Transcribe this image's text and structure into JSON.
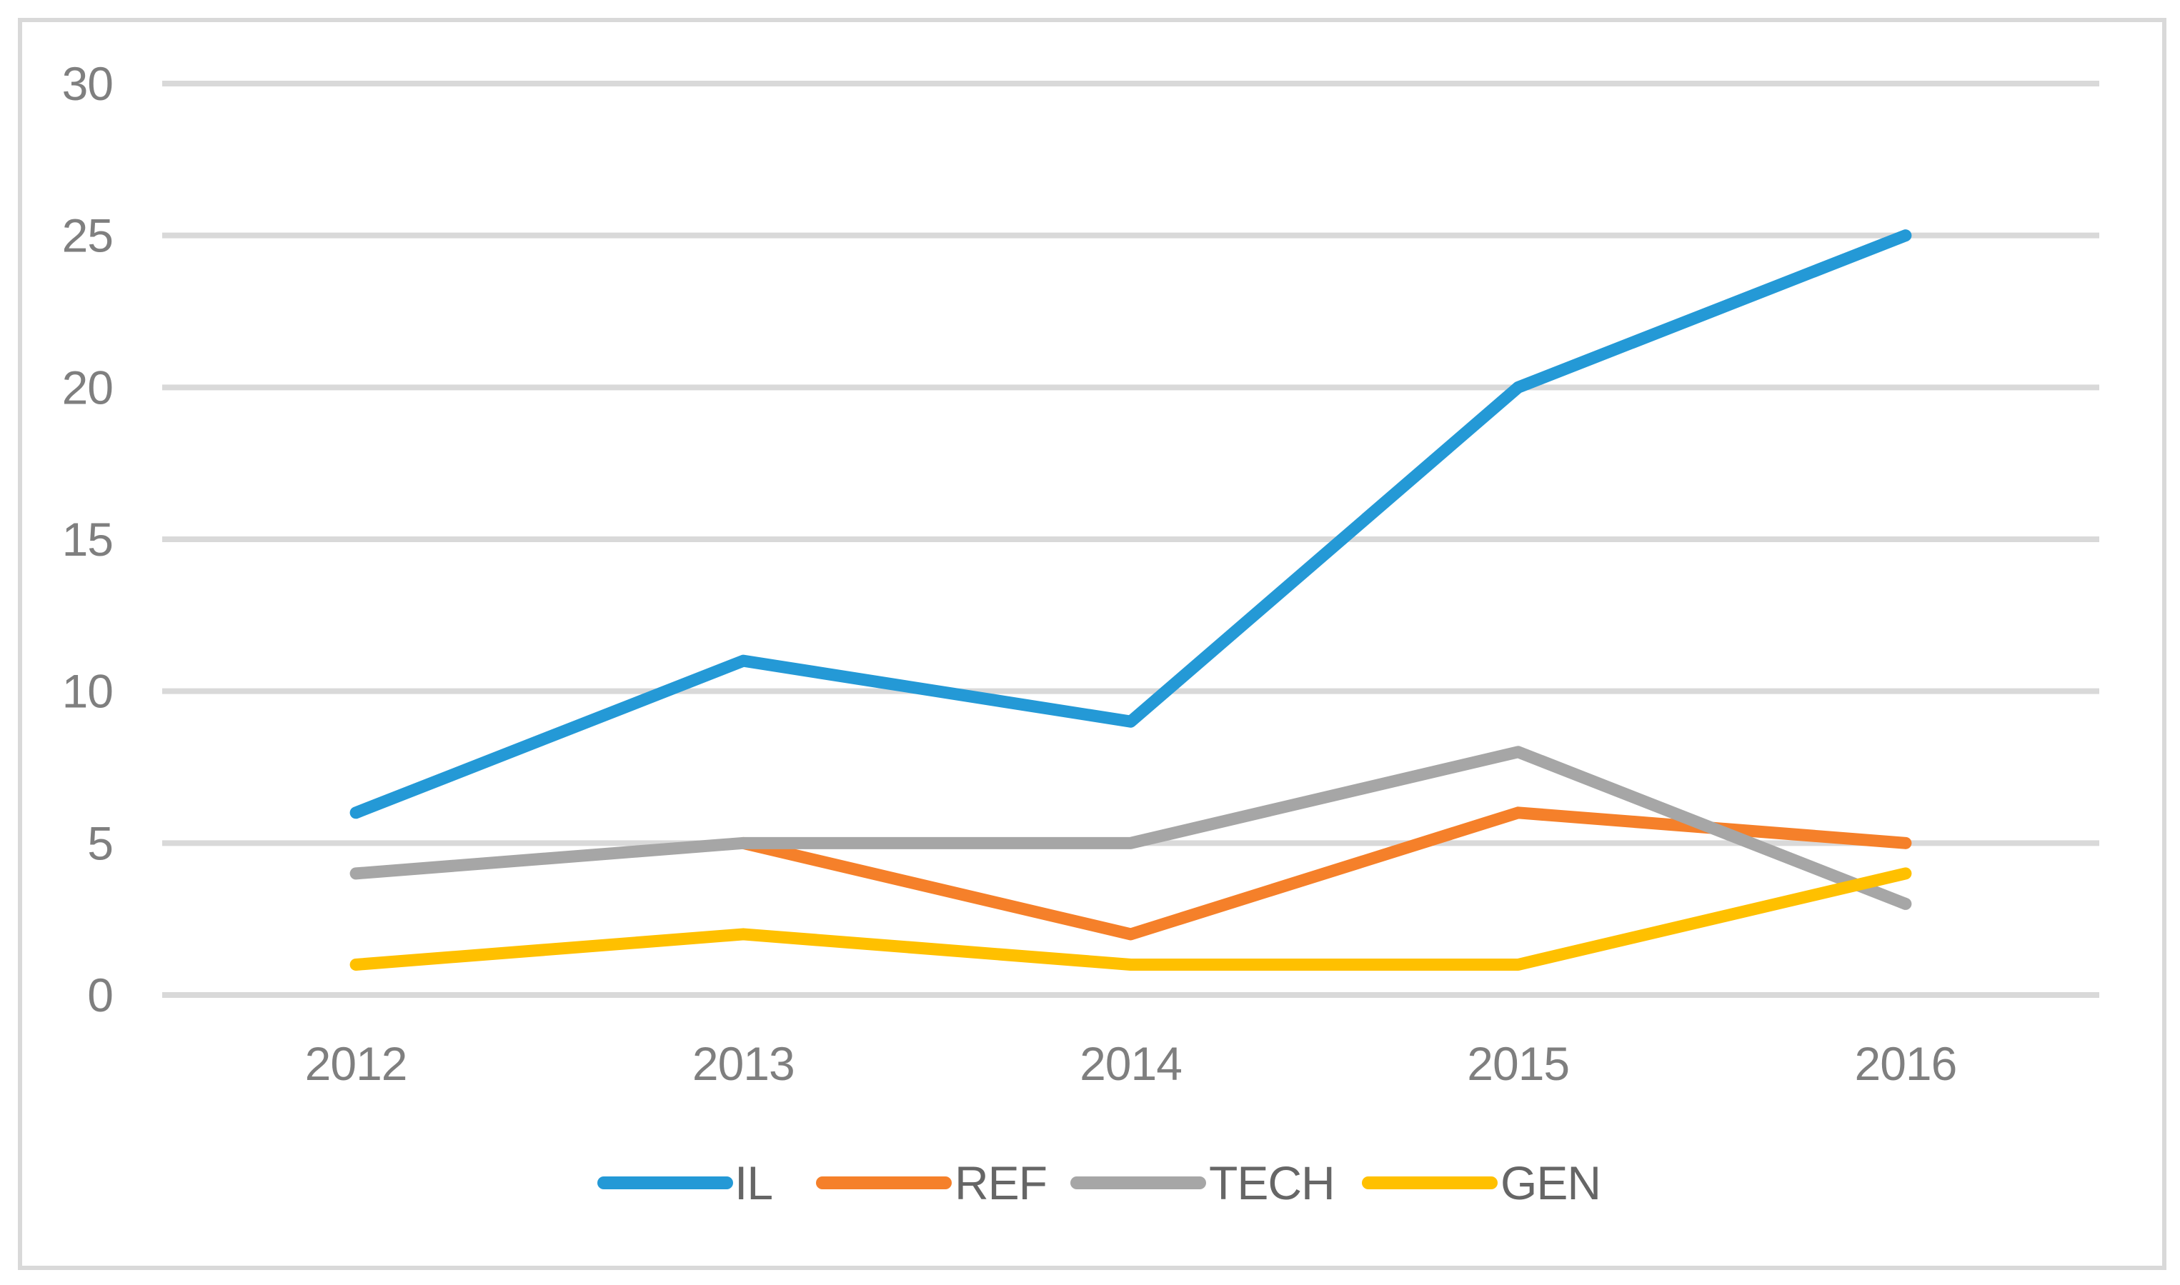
{
  "chart_data": {
    "type": "line",
    "title": "",
    "xlabel": "",
    "ylabel": "",
    "categories": [
      "2012",
      "2013",
      "2014",
      "2015",
      "2016"
    ],
    "yticks": [
      "0",
      "5",
      "10",
      "15",
      "20",
      "25",
      "30"
    ],
    "ylim": [
      0,
      30
    ],
    "grid": true,
    "legend_position": "bottom",
    "series": [
      {
        "name": "IL",
        "color": "#2499D6",
        "values": [
          6,
          11,
          9,
          20,
          25
        ]
      },
      {
        "name": "REF",
        "color": "#F5802A",
        "values": [
          null,
          5,
          2,
          6,
          5
        ]
      },
      {
        "name": "TECH",
        "color": "#A6A6A6",
        "values": [
          4,
          5,
          5,
          8,
          3
        ]
      },
      {
        "name": "GEN",
        "color": "#FFC000",
        "values": [
          1,
          2,
          1,
          1,
          4
        ]
      }
    ],
    "colors": {
      "gridline": "#D9D9D9",
      "border": "#D9D9D9",
      "axis_label": "#7F7F7F",
      "legend_label": "#666666",
      "background": "#FFFFFF"
    }
  }
}
